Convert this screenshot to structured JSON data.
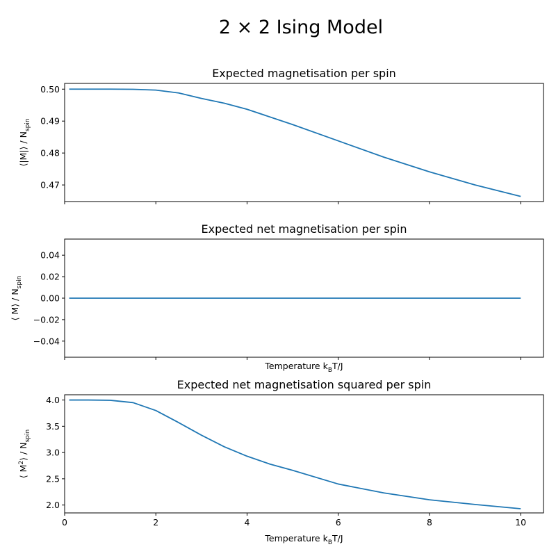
{
  "figure": {
    "suptitle": "2 × 2 Ising Model"
  },
  "colors": {
    "series": "#1f77b4",
    "axes": "#000000",
    "background": "#ffffff"
  },
  "chart_data": [
    {
      "type": "line",
      "title": "Expected magnetisation per spin",
      "ylabel": {
        "prefix": "⟨|M|⟩ / N",
        "sub": "spin"
      },
      "xlabel": "",
      "xlim": [
        0,
        10.5
      ],
      "ylim": [
        0.4648,
        0.5018
      ],
      "xticks": [
        0,
        2,
        4,
        6,
        8,
        10
      ],
      "show_xtick_labels": false,
      "yticks": [
        0.47,
        0.48,
        0.49,
        0.5
      ],
      "ytick_labels": [
        "0.47",
        "0.48",
        "0.49",
        "0.50"
      ],
      "grid": false,
      "series": [
        {
          "x": [
            0.1,
            0.5,
            1.0,
            1.5,
            2.0,
            2.5,
            3.0,
            3.5,
            4.0,
            5.0,
            6.0,
            7.0,
            8.0,
            9.0,
            10.0
          ],
          "y": [
            0.5,
            0.5,
            0.5,
            0.49995,
            0.4997,
            0.4988,
            0.4971,
            0.4956,
            0.4937,
            0.4889,
            0.4838,
            0.4787,
            0.4741,
            0.47,
            0.4664
          ]
        }
      ]
    },
    {
      "type": "line",
      "title": "Expected net magnetisation per spin",
      "ylabel": {
        "prefix": "⟨ M⟩ / N",
        "sub": "spin"
      },
      "xlabel": {
        "prefix": "Temperature k",
        "sub": "B",
        "suffix": "T/J"
      },
      "xlim": [
        0,
        10.5
      ],
      "ylim": [
        -0.055,
        0.055
      ],
      "xticks": [
        0,
        2,
        4,
        6,
        8,
        10
      ],
      "show_xtick_labels": false,
      "yticks": [
        -0.04,
        -0.02,
        0.0,
        0.02,
        0.04
      ],
      "ytick_labels": [
        "−0.04",
        "−0.02",
        "0.00",
        "0.02",
        "0.04"
      ],
      "grid": false,
      "series": [
        {
          "x": [
            0.1,
            10.0
          ],
          "y": [
            0.0,
            0.0
          ]
        }
      ]
    },
    {
      "type": "line",
      "title": "Expected net magnetisation squared per spin",
      "ylabel": {
        "prefix": "⟨ M",
        "sup": "2",
        "mid": "⟩ / N",
        "sub": "spin"
      },
      "xlabel": {
        "prefix": "Temperature k",
        "sub": "B",
        "suffix": "T/J"
      },
      "xlim": [
        0,
        10.5
      ],
      "ylim": [
        1.85,
        4.1
      ],
      "xticks": [
        0,
        2,
        4,
        6,
        8,
        10
      ],
      "xtick_labels": [
        "0",
        "2",
        "4",
        "6",
        "8",
        "10"
      ],
      "show_xtick_labels": true,
      "yticks": [
        2.0,
        2.5,
        3.0,
        3.5,
        4.0
      ],
      "ytick_labels": [
        "2.0",
        "2.5",
        "3.0",
        "3.5",
        "4.0"
      ],
      "grid": false,
      "series": [
        {
          "x": [
            0.1,
            0.5,
            1.0,
            1.5,
            2.0,
            2.5,
            3.0,
            3.5,
            4.0,
            4.5,
            5.0,
            6.0,
            7.0,
            8.0,
            9.0,
            10.0
          ],
          "y": [
            4.0,
            4.0,
            3.995,
            3.95,
            3.8,
            3.57,
            3.33,
            3.11,
            2.93,
            2.78,
            2.66,
            2.4,
            2.23,
            2.1,
            2.01,
            1.93
          ]
        }
      ]
    }
  ]
}
